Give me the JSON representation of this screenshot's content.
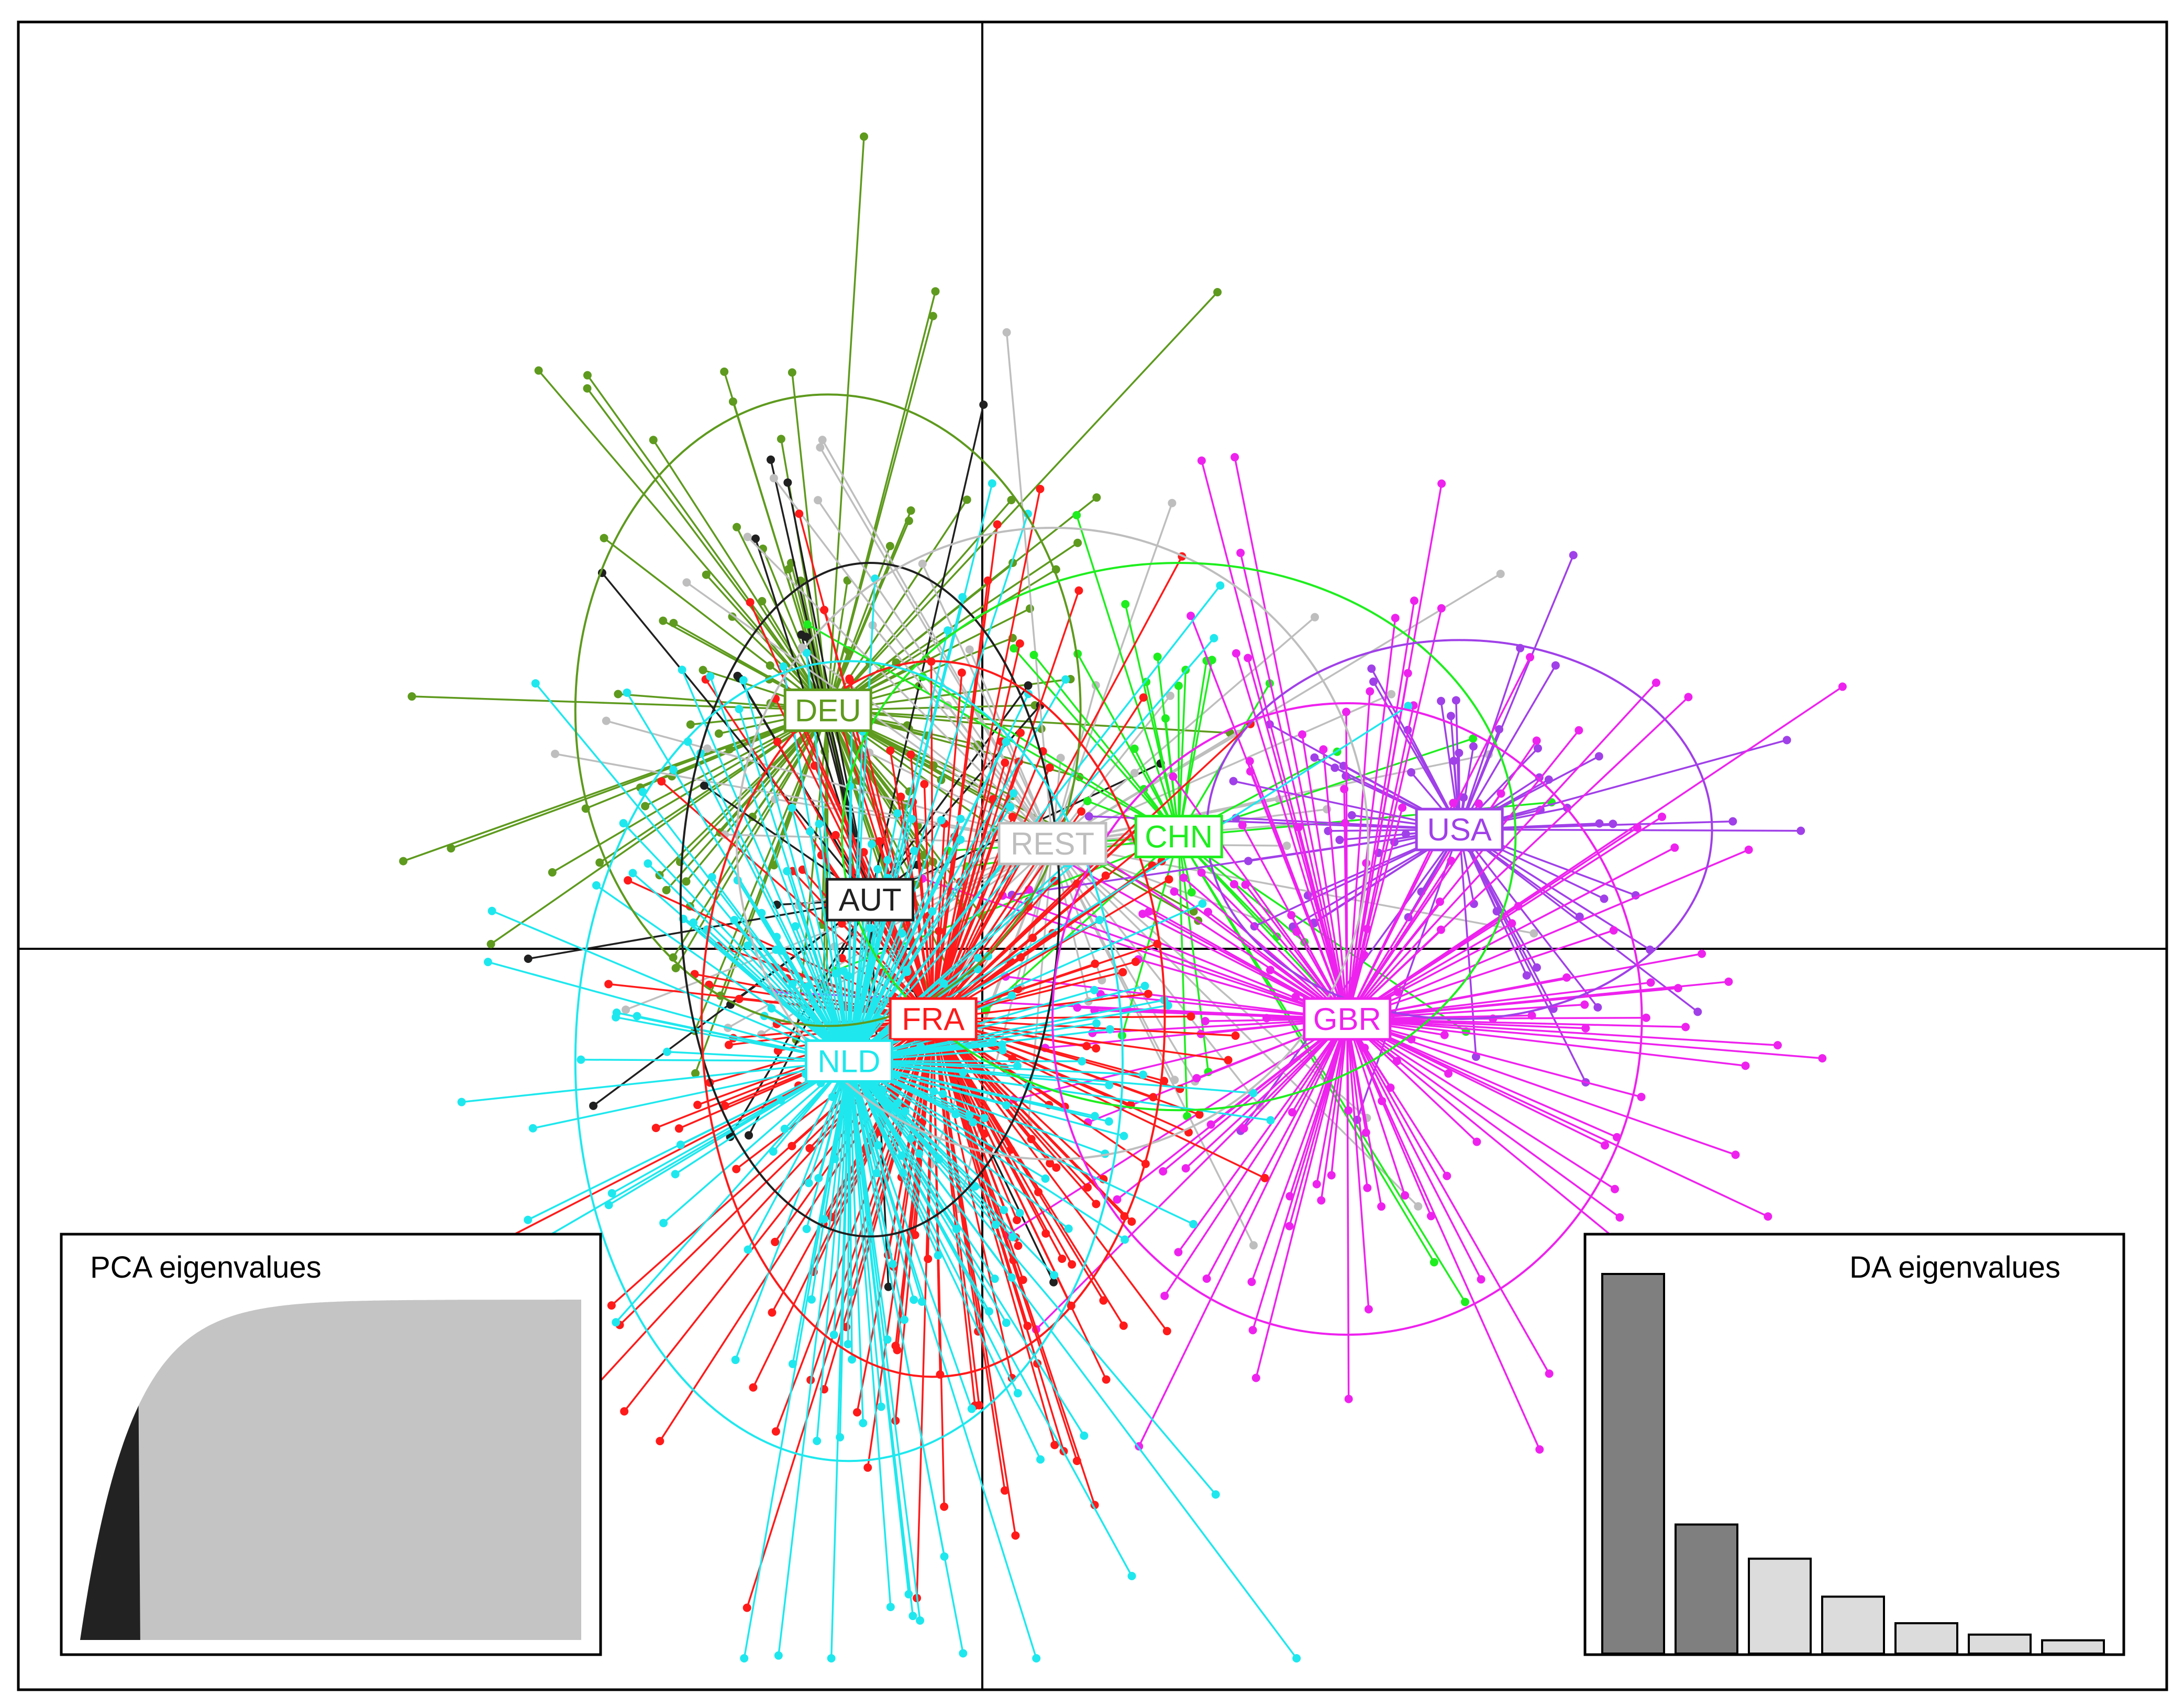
{
  "chart_data": {
    "type": "scatter",
    "title": "",
    "xlabel": "",
    "ylabel": "",
    "axes": {
      "x_range": [
        -6.5,
        8.0
      ],
      "y_range": [
        -5.0,
        6.0
      ],
      "grid": false,
      "origin_lines": true
    },
    "groups": [
      {
        "label": "DEU",
        "color": "#5e9a1e",
        "centroid": [
          -1.1,
          1.7
        ],
        "n": 110,
        "spread": [
          1.2,
          1.5
        ],
        "seed": 11
      },
      {
        "label": "AUT",
        "color": "#202020",
        "centroid": [
          -0.8,
          0.35
        ],
        "n": 25,
        "spread": [
          0.9,
          1.6
        ],
        "seed": 23
      },
      {
        "label": "REST",
        "color": "#bebebe",
        "centroid": [
          0.5,
          0.75
        ],
        "n": 60,
        "spread": [
          1.5,
          1.5
        ],
        "seed": 37
      },
      {
        "label": "CHN",
        "color": "#1eee1e",
        "centroid": [
          1.4,
          0.8
        ],
        "n": 35,
        "spread": [
          1.6,
          1.3
        ],
        "seed": 41
      },
      {
        "label": "USA",
        "color": "#a040e8",
        "centroid": [
          3.4,
          0.85
        ],
        "n": 65,
        "spread": [
          1.2,
          0.9
        ],
        "seed": 53
      },
      {
        "label": "GBR",
        "color": "#ee22ee",
        "centroid": [
          2.6,
          -0.5
        ],
        "n": 140,
        "spread": [
          1.4,
          1.5
        ],
        "seed": 67
      },
      {
        "label": "FRA",
        "color": "#ff1a1a",
        "centroid": [
          -0.35,
          -0.5
        ],
        "n": 210,
        "spread": [
          1.1,
          1.7
        ],
        "seed": 79
      },
      {
        "label": "NLD",
        "color": "#1ee8ee",
        "centroid": [
          -0.95,
          -0.8
        ],
        "n": 210,
        "spread": [
          1.3,
          1.9
        ],
        "seed": 97
      }
    ],
    "inset_pca": {
      "title": "PCA eigenvalues",
      "retained_fraction": 0.12,
      "retained_color": "#222222",
      "other_color": "#c4c4c4"
    },
    "inset_da": {
      "title": "DA eigenvalues",
      "values": [
        100,
        34,
        25,
        15,
        8,
        5,
        3.5
      ],
      "retained": 2,
      "retained_color": "#7f7f7f",
      "other_color": "#dcdcdc"
    }
  }
}
